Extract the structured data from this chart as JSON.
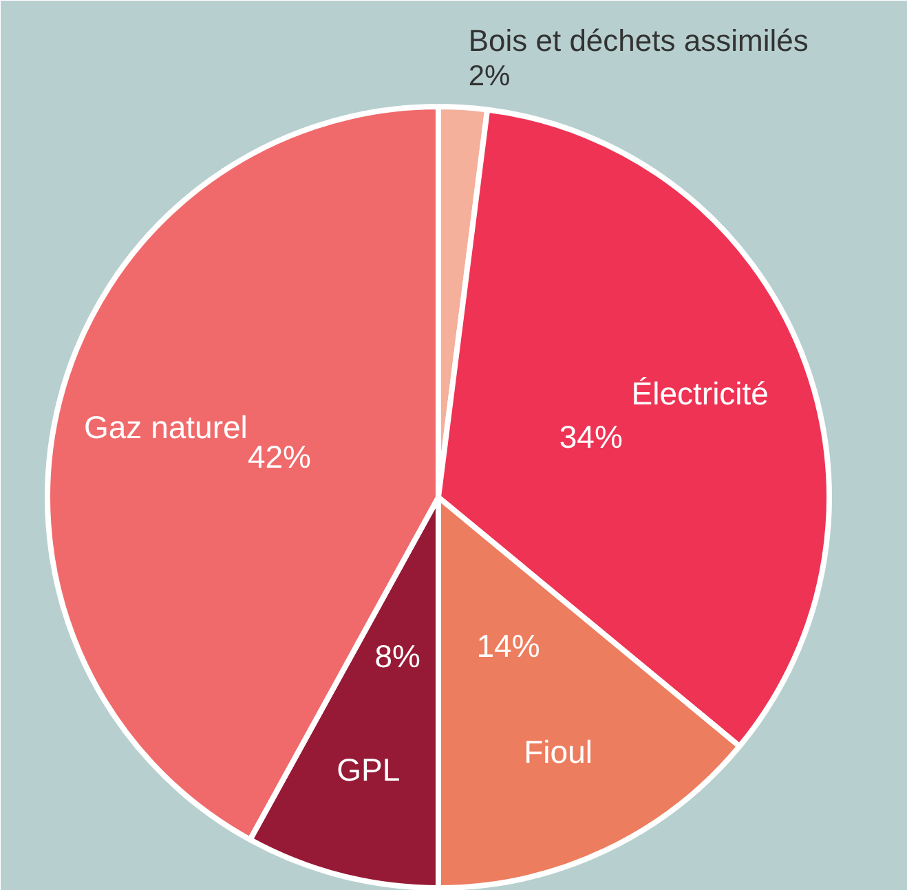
{
  "chart_data": {
    "type": "pie",
    "categories": [
      "Bois et déchets assimilés",
      "Électricité",
      "Fioul",
      "GPL",
      "Gaz naturel"
    ],
    "values": [
      2,
      34,
      14,
      8,
      42
    ],
    "colors": [
      "#f4b09a",
      "#ef3354",
      "#ed7d5f",
      "#961a36",
      "#f06a6c"
    ],
    "value_labels": [
      "2%",
      "34%",
      "14%",
      "8%",
      "42%"
    ]
  }
}
